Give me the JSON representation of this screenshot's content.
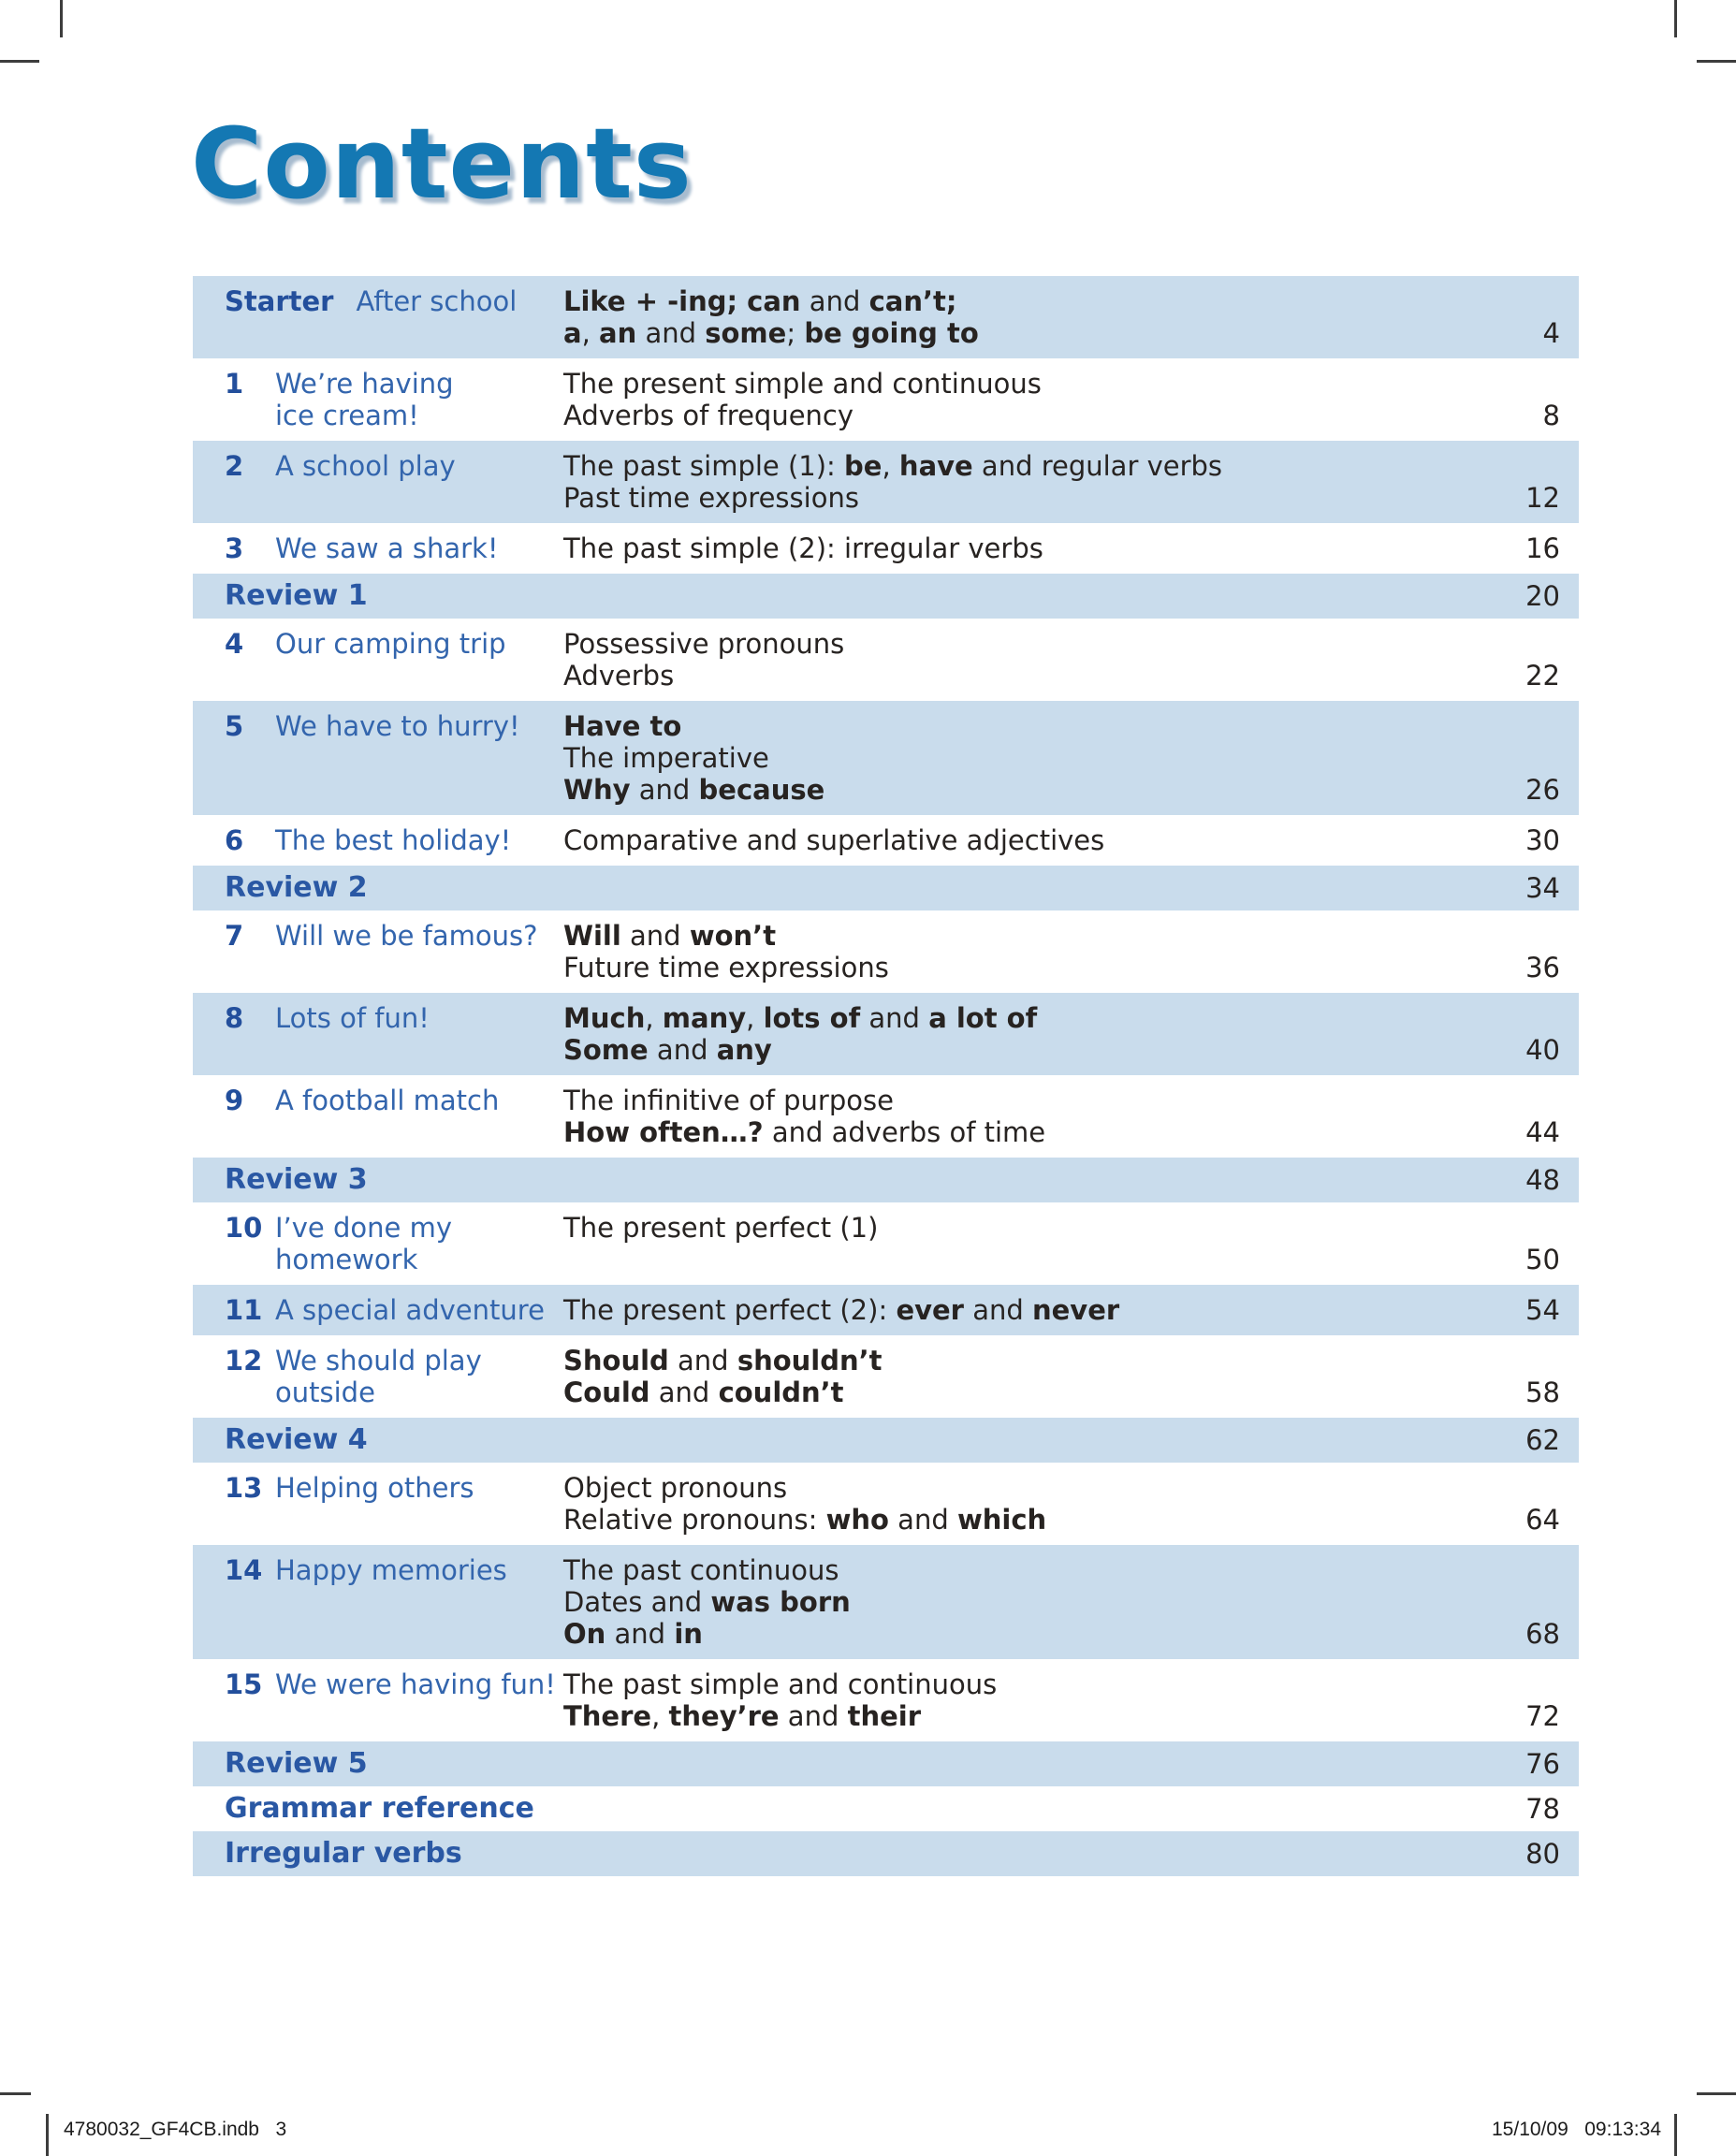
{
  "page": {
    "title": "Contents",
    "colors": {
      "accent": "#1478b3",
      "row_band": "#c9dcec",
      "unit_number_blue": "#234f9c",
      "unit_title_blue": "#3365ad",
      "section_blue": "#2a58a4",
      "body_ink": "#272321"
    }
  },
  "footer": {
    "left": "4780032_GF4CB.indb   3",
    "right": "15/10/09   09:13:34"
  },
  "toc": {
    "rows": [
      {
        "type": "unit",
        "starter": true,
        "shaded": true,
        "num": "Starter",
        "title": [
          "After school"
        ],
        "desc": [
          [
            {
              "t": "Like + -ing; ",
              "b": true
            },
            {
              "t": "can",
              "b": true
            },
            {
              "t": " and ",
              "b": false
            },
            {
              "t": "can’t;",
              "b": true
            }
          ],
          [
            {
              "t": "a",
              "b": true
            },
            {
              "t": ", ",
              "b": false
            },
            {
              "t": "an",
              "b": true
            },
            {
              "t": " and ",
              "b": false
            },
            {
              "t": "some",
              "b": true
            },
            {
              "t": "; ",
              "b": false
            },
            {
              "t": "be going to",
              "b": true
            }
          ]
        ],
        "page": "4"
      },
      {
        "type": "unit",
        "shaded": false,
        "num": "1",
        "title": [
          "We’re having",
          "ice cream!"
        ],
        "desc": [
          [
            {
              "t": "The present simple and continuous",
              "b": false
            }
          ],
          [
            {
              "t": "Adverbs of frequency",
              "b": false
            }
          ]
        ],
        "page": "8"
      },
      {
        "type": "unit",
        "shaded": true,
        "num": "2",
        "title": [
          "A school play"
        ],
        "desc": [
          [
            {
              "t": "The past simple (1): ",
              "b": false
            },
            {
              "t": "be",
              "b": true
            },
            {
              "t": ", ",
              "b": false
            },
            {
              "t": "have",
              "b": true
            },
            {
              "t": " and regular verbs",
              "b": false
            }
          ],
          [
            {
              "t": "Past time expressions",
              "b": false
            }
          ]
        ],
        "page": "12"
      },
      {
        "type": "unit",
        "shaded": false,
        "num": "3",
        "title": [
          "We saw a shark!"
        ],
        "desc": [
          [
            {
              "t": "The past simple (2): irregular verbs",
              "b": false
            }
          ]
        ],
        "page": "16"
      },
      {
        "type": "section",
        "shaded": true,
        "label": "Review 1",
        "page": "20"
      },
      {
        "type": "unit",
        "shaded": false,
        "num": "4",
        "title": [
          "Our camping trip"
        ],
        "desc": [
          [
            {
              "t": "Possessive pronouns",
              "b": false
            }
          ],
          [
            {
              "t": "Adverbs",
              "b": false
            }
          ]
        ],
        "page": "22"
      },
      {
        "type": "unit",
        "shaded": true,
        "num": "5",
        "title": [
          "We have to hurry!"
        ],
        "desc": [
          [
            {
              "t": "Have to",
              "b": true
            }
          ],
          [
            {
              "t": "The imperative",
              "b": false
            }
          ],
          [
            {
              "t": "Why",
              "b": true
            },
            {
              "t": " and ",
              "b": false
            },
            {
              "t": "because",
              "b": true
            }
          ]
        ],
        "page": "26"
      },
      {
        "type": "unit",
        "shaded": false,
        "num": "6",
        "title": [
          "The best holiday!"
        ],
        "desc": [
          [
            {
              "t": "Comparative and superlative adjectives",
              "b": false
            }
          ]
        ],
        "page": "30"
      },
      {
        "type": "section",
        "shaded": true,
        "label": "Review 2",
        "page": "34"
      },
      {
        "type": "unit",
        "shaded": false,
        "num": "7",
        "title": [
          "Will we be famous?"
        ],
        "desc": [
          [
            {
              "t": "Will",
              "b": true
            },
            {
              "t": " and ",
              "b": false
            },
            {
              "t": "won’t",
              "b": true
            }
          ],
          [
            {
              "t": "Future time expressions",
              "b": false
            }
          ]
        ],
        "page": "36"
      },
      {
        "type": "unit",
        "shaded": true,
        "num": "8",
        "title": [
          "Lots of fun!"
        ],
        "desc": [
          [
            {
              "t": "Much",
              "b": true
            },
            {
              "t": ", ",
              "b": false
            },
            {
              "t": "many",
              "b": true
            },
            {
              "t": ", ",
              "b": false
            },
            {
              "t": "lots of",
              "b": true
            },
            {
              "t": " and ",
              "b": false
            },
            {
              "t": "a lot of",
              "b": true
            }
          ],
          [
            {
              "t": "Some",
              "b": true
            },
            {
              "t": " and ",
              "b": false
            },
            {
              "t": "any",
              "b": true
            }
          ]
        ],
        "page": "40"
      },
      {
        "type": "unit",
        "shaded": false,
        "num": "9",
        "title": [
          "A football match"
        ],
        "desc": [
          [
            {
              "t": "The infinitive of purpose",
              "b": false
            }
          ],
          [
            {
              "t": "How often…?",
              "b": true
            },
            {
              "t": " and adverbs of time",
              "b": false
            }
          ]
        ],
        "page": "44"
      },
      {
        "type": "section",
        "shaded": true,
        "label": "Review 3",
        "page": "48"
      },
      {
        "type": "unit",
        "shaded": false,
        "num": "10",
        "title": [
          "I’ve done my",
          "homework"
        ],
        "desc": [
          [
            {
              "t": "The present perfect (1)",
              "b": false
            }
          ]
        ],
        "page": "50"
      },
      {
        "type": "unit",
        "shaded": true,
        "num": "11",
        "title": [
          "A special adventure"
        ],
        "desc": [
          [
            {
              "t": "The present perfect (2): ",
              "b": false
            },
            {
              "t": "ever",
              "b": true
            },
            {
              "t": " and ",
              "b": false
            },
            {
              "t": "never",
              "b": true
            }
          ]
        ],
        "page": "54"
      },
      {
        "type": "unit",
        "shaded": false,
        "num": "12",
        "title": [
          "We should play",
          "outside"
        ],
        "desc": [
          [
            {
              "t": "Should",
              "b": true
            },
            {
              "t": " and ",
              "b": false
            },
            {
              "t": "shouldn’t",
              "b": true
            }
          ],
          [
            {
              "t": "Could",
              "b": true
            },
            {
              "t": " and ",
              "b": false
            },
            {
              "t": "couldn’t",
              "b": true
            }
          ]
        ],
        "page": "58"
      },
      {
        "type": "section",
        "shaded": true,
        "label": "Review 4",
        "page": "62"
      },
      {
        "type": "unit",
        "shaded": false,
        "num": "13",
        "title": [
          "Helping others"
        ],
        "desc": [
          [
            {
              "t": "Object pronouns",
              "b": false
            }
          ],
          [
            {
              "t": "Relative pronouns: ",
              "b": false
            },
            {
              "t": "who",
              "b": true
            },
            {
              "t": " and ",
              "b": false
            },
            {
              "t": "which",
              "b": true
            }
          ]
        ],
        "page": "64"
      },
      {
        "type": "unit",
        "shaded": true,
        "num": "14",
        "title": [
          "Happy memories"
        ],
        "desc": [
          [
            {
              "t": "The past continuous",
              "b": false
            }
          ],
          [
            {
              "t": "Dates and ",
              "b": false
            },
            {
              "t": "was born",
              "b": true
            }
          ],
          [
            {
              "t": "On",
              "b": true
            },
            {
              "t": " and ",
              "b": false
            },
            {
              "t": "in",
              "b": true
            }
          ]
        ],
        "page": "68"
      },
      {
        "type": "unit",
        "shaded": false,
        "num": "15",
        "title": [
          "We were having fun!"
        ],
        "desc": [
          [
            {
              "t": "The past simple and continuous",
              "b": false
            }
          ],
          [
            {
              "t": "There",
              "b": true
            },
            {
              "t": ", ",
              "b": false
            },
            {
              "t": "they’re",
              "b": true
            },
            {
              "t": " and ",
              "b": false
            },
            {
              "t": "their",
              "b": true
            }
          ]
        ],
        "page": "72"
      },
      {
        "type": "section",
        "shaded": true,
        "label": "Review 5",
        "page": "76"
      },
      {
        "type": "section",
        "shaded": false,
        "label": "Grammar reference",
        "page": "78"
      },
      {
        "type": "section",
        "shaded": true,
        "label": "Irregular verbs",
        "page": "80"
      }
    ]
  }
}
